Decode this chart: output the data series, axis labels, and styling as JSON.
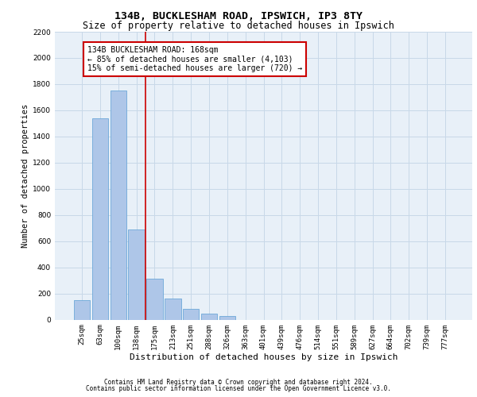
{
  "title1": "134B, BUCKLESHAM ROAD, IPSWICH, IP3 8TY",
  "title2": "Size of property relative to detached houses in Ipswich",
  "xlabel": "Distribution of detached houses by size in Ipswich",
  "ylabel": "Number of detached properties",
  "categories": [
    "25sqm",
    "63sqm",
    "100sqm",
    "138sqm",
    "175sqm",
    "213sqm",
    "251sqm",
    "288sqm",
    "326sqm",
    "363sqm",
    "401sqm",
    "439sqm",
    "476sqm",
    "514sqm",
    "551sqm",
    "589sqm",
    "627sqm",
    "664sqm",
    "702sqm",
    "739sqm",
    "777sqm"
  ],
  "values": [
    150,
    1540,
    1750,
    690,
    310,
    160,
    80,
    45,
    25,
    0,
    0,
    0,
    0,
    0,
    0,
    0,
    0,
    0,
    0,
    0,
    0
  ],
  "bar_color": "#aec6e8",
  "bar_edge_color": "#5a9fd4",
  "grid_color": "#c8d8e8",
  "background_color": "#e8f0f8",
  "red_line_index": 3,
  "annotation_text": "134B BUCKLESHAM ROAD: 168sqm\n← 85% of detached houses are smaller (4,103)\n15% of semi-detached houses are larger (720) →",
  "annotation_box_color": "#ffffff",
  "annotation_border_color": "#cc0000",
  "ylim": [
    0,
    2200
  ],
  "yticks": [
    0,
    200,
    400,
    600,
    800,
    1000,
    1200,
    1400,
    1600,
    1800,
    2000,
    2200
  ],
  "footer1": "Contains HM Land Registry data © Crown copyright and database right 2024.",
  "footer2": "Contains public sector information licensed under the Open Government Licence v3.0.",
  "title1_fontsize": 9.5,
  "title2_fontsize": 8.5,
  "xlabel_fontsize": 8,
  "ylabel_fontsize": 7.5,
  "tick_fontsize": 6.5,
  "annot_fontsize": 7,
  "footer_fontsize": 5.5
}
